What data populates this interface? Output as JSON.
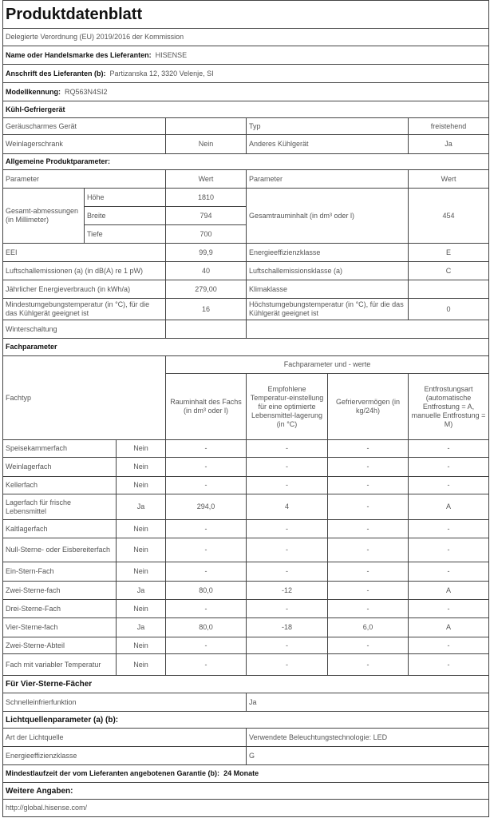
{
  "title": "Produktdatenblatt",
  "subtitle": "Delegierte Verordnung (EU) 2019/2016 der Kommission",
  "supplier": {
    "label": "Name oder Handelsmarke des Lieferanten:",
    "value": "HISENSE"
  },
  "address": {
    "label": "Anschrift des Lieferanten (b):",
    "value": "Partizanska 12, 3320 Velenje, SI"
  },
  "model": {
    "label": "Modellkennung:",
    "value": "RQ563N4SI2"
  },
  "category": "Kühl-Gefriergerät",
  "category_rows": [
    {
      "l1": "Geräuscharmes Gerät",
      "v1": "",
      "l2": "Typ",
      "v2": "freistehend"
    },
    {
      "l1": "Weinlagerschrank",
      "v1": "Nein",
      "l2": "Anderes Kühlgerät",
      "v2": "Ja"
    }
  ],
  "general": {
    "heading": "Allgemeine Produktparameter:",
    "col_param": "Parameter",
    "col_value": "Wert",
    "dimensions_label": "Gesamt-abmessungen (in Millimeter)",
    "dimensions": [
      {
        "label": "Höhe",
        "value": "1810"
      },
      {
        "label": "Breite",
        "value": "794"
      },
      {
        "label": "Tiefe",
        "value": "700"
      }
    ],
    "total_volume_label": "Gesamtrauminhalt (in dm³ oder l)",
    "total_volume": "454",
    "rows": [
      {
        "l1": "EEI",
        "v1": "99,9",
        "l2": "Energieeffizienzklasse",
        "v2": "E"
      },
      {
        "l1": "Luftschallemissionen (a) (in dB(A) re 1 pW)",
        "v1": "40",
        "l2": "Luftschallemissionsklasse (a)",
        "v2": "C"
      },
      {
        "l1": "Jährlicher Energieverbrauch (in kWh/a)",
        "v1": "279,00",
        "l2": "Klimaklasse",
        "v2": ""
      },
      {
        "l1": "Mindestumgebungstemperatur (in °C), für die das Kühlgerät geeignet ist",
        "v1": "16",
        "l2": "Höchstumgebungstemperatur (in °C), für die das Kühlgerät geeignet ist",
        "v2": "0"
      }
    ],
    "winter_label": "Winterschaltung"
  },
  "fach": {
    "heading": "Fachparameter",
    "type_header": "Fachtyp",
    "group_header": "Fachparameter und - werte",
    "col_headers": [
      "Rauminhalt des Fachs (in dm³ oder l)",
      "Empfohlene Temperatur-einstellung für eine optimierte Lebensmittel-lagerung (in °C)",
      "Gefriervermögen (in kg/24h)",
      "Entfrostungsart (automatische Entfrostung = A, manuelle Entfrostung = M)"
    ],
    "rows": [
      {
        "name": "Speisekammerfach",
        "present": "Nein",
        "cells": [
          "-",
          "-",
          "-",
          "-"
        ]
      },
      {
        "name": "Weinlagerfach",
        "present": "Nein",
        "cells": [
          "-",
          "-",
          "-",
          "-"
        ]
      },
      {
        "name": "Kellerfach",
        "present": "Nein",
        "cells": [
          "-",
          "-",
          "-",
          "-"
        ]
      },
      {
        "name": "Lagerfach für frische Lebensmittel",
        "present": "Ja",
        "cells": [
          "294,0",
          "4",
          "-",
          "A"
        ]
      },
      {
        "name": "Kaltlagerfach",
        "present": "Nein",
        "cells": [
          "-",
          "-",
          "-",
          "-"
        ]
      },
      {
        "name": "Null-Sterne- oder Eisbereiterfach",
        "present": "Nein",
        "cells": [
          "-",
          "-",
          "-",
          "-"
        ]
      },
      {
        "name": "Ein-Stern-Fach",
        "present": "Nein",
        "cells": [
          "-",
          "-",
          "-",
          "-"
        ]
      },
      {
        "name": "Zwei-Sterne-fach",
        "present": "Ja",
        "cells": [
          "80,0",
          "-12",
          "-",
          "A"
        ]
      },
      {
        "name": "Drei-Sterne-Fach",
        "present": "Nein",
        "cells": [
          "-",
          "-",
          "-",
          "-"
        ]
      },
      {
        "name": "Vier-Sterne-fach",
        "present": "Ja",
        "cells": [
          "80,0",
          "-18",
          "6,0",
          "A"
        ]
      },
      {
        "name": "Zwei-Sterne-Abteil",
        "present": "Nein",
        "cells": [
          "-",
          "-",
          "-",
          "-"
        ]
      },
      {
        "name": "Fach mit variabler Temperatur",
        "present": "Nein",
        "cells": [
          "-",
          "-",
          "-",
          "-"
        ]
      }
    ]
  },
  "four_star": {
    "heading": "Für Vier-Sterne-Fächer",
    "label": "Schnelleinfrierfunktion",
    "value": "Ja"
  },
  "light": {
    "heading": "Lichtquellenparameter (a) (b):",
    "rows": [
      {
        "label": "Art der Lichtquelle",
        "value": "Verwendete Beleuchtungstechnologie: LED"
      },
      {
        "label": "Energieeffizienzklasse",
        "value": "G"
      }
    ]
  },
  "warranty": {
    "label": "Mindestlaufzeit der vom Lieferanten angebotenen Garantie (b):",
    "value": "24 Monate"
  },
  "further": {
    "heading": "Weitere Angaben:",
    "url": "http://global.hisense.com/"
  }
}
